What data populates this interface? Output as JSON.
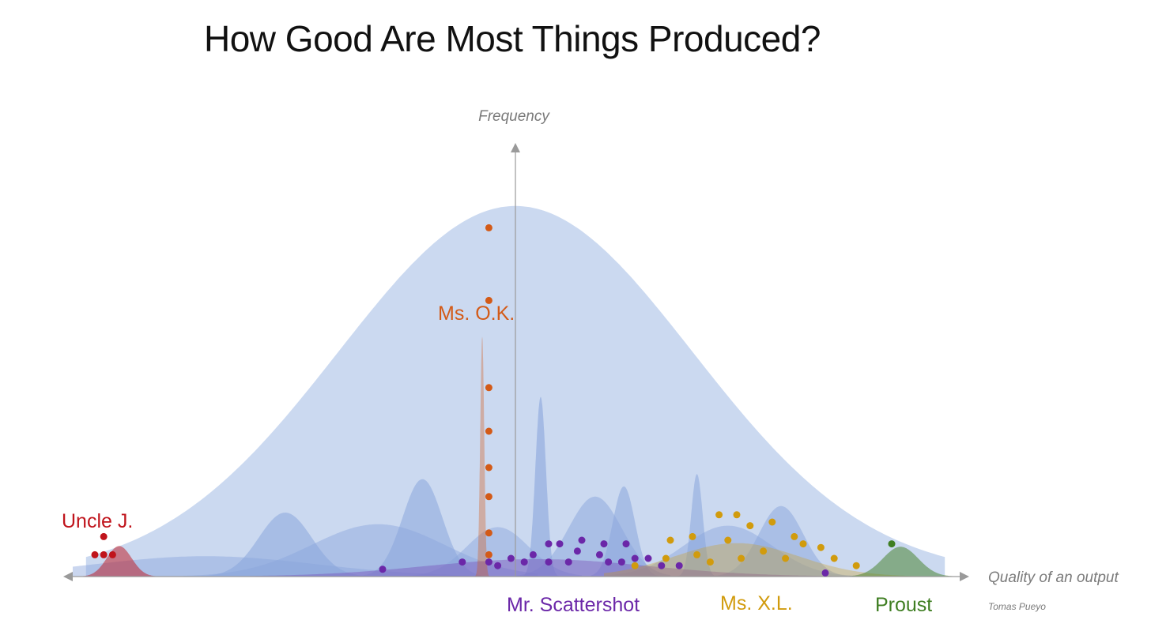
{
  "chart_data": {
    "type": "area",
    "title": "How Good Are Most Things Produced?",
    "xlabel": "Quality of an output",
    "ylabel": "Frequency",
    "credit": "Tomas Pueyo",
    "grid": false,
    "colors": {
      "population": "#cbd9f0",
      "individual": "#8aa5dc",
      "axis": "#8e8e8e"
    },
    "series": [
      {
        "name": "Uncle J.",
        "color": "#c0141c",
        "points": [
          [
            -0.93,
            0.03
          ],
          [
            -0.95,
            0.03
          ],
          [
            -0.91,
            0.03
          ],
          [
            -0.93,
            0.055
          ]
        ]
      },
      {
        "name": "Ms. O.K.",
        "color": "#d35a17",
        "points": [
          [
            -0.06,
            0.48
          ],
          [
            -0.06,
            0.38
          ],
          [
            -0.06,
            0.26
          ],
          [
            -0.06,
            0.2
          ],
          [
            -0.06,
            0.15
          ],
          [
            -0.06,
            0.11
          ],
          [
            -0.06,
            0.06
          ],
          [
            -0.06,
            0.03
          ]
        ]
      },
      {
        "name": "Mr. Scattershot",
        "color": "#6b27a8",
        "points": [
          [
            -0.3,
            0.01
          ],
          [
            -0.12,
            0.02
          ],
          [
            -0.06,
            0.02
          ],
          [
            -0.04,
            0.015
          ],
          [
            -0.01,
            0.025
          ],
          [
            0.02,
            0.02
          ],
          [
            0.04,
            0.03
          ],
          [
            0.075,
            0.045
          ],
          [
            0.1,
            0.045
          ],
          [
            0.075,
            0.02
          ],
          [
            0.14,
            0.035
          ],
          [
            0.12,
            0.02
          ],
          [
            0.15,
            0.05
          ],
          [
            0.19,
            0.03
          ],
          [
            0.2,
            0.045
          ],
          [
            0.21,
            0.02
          ],
          [
            0.25,
            0.045
          ],
          [
            0.24,
            0.02
          ],
          [
            0.27,
            0.025
          ],
          [
            0.3,
            0.025
          ],
          [
            0.33,
            0.015
          ],
          [
            0.37,
            0.015
          ],
          [
            0.7,
            0.005
          ]
        ]
      },
      {
        "name": "Ms. X.L.",
        "color": "#d19b0d",
        "points": [
          [
            0.27,
            0.015
          ],
          [
            0.34,
            0.025
          ],
          [
            0.35,
            0.05
          ],
          [
            0.4,
            0.055
          ],
          [
            0.41,
            0.03
          ],
          [
            0.44,
            0.02
          ],
          [
            0.46,
            0.085
          ],
          [
            0.48,
            0.05
          ],
          [
            0.5,
            0.085
          ],
          [
            0.51,
            0.025
          ],
          [
            0.53,
            0.07
          ],
          [
            0.56,
            0.035
          ],
          [
            0.58,
            0.075
          ],
          [
            0.61,
            0.025
          ],
          [
            0.63,
            0.055
          ],
          [
            0.65,
            0.045
          ],
          [
            0.69,
            0.04
          ],
          [
            0.72,
            0.025
          ],
          [
            0.77,
            0.015
          ]
        ]
      },
      {
        "name": "Proust",
        "color": "#3f7e22",
        "points": [
          [
            0.85,
            0.045
          ]
        ]
      }
    ]
  }
}
